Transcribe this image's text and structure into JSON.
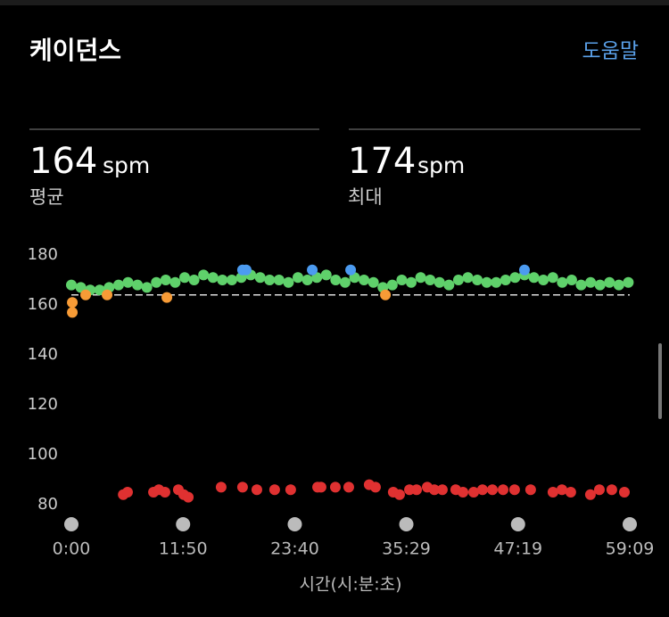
{
  "help_link": "도움말",
  "stats": [
    {
      "value": 164,
      "unit": "spm",
      "label": "평균"
    },
    {
      "value": 174,
      "unit": "spm",
      "label": "최대"
    }
  ],
  "chart_data": {
    "type": "scatter",
    "title": "케이던스",
    "x_label": "시간(시:분:초)",
    "xlim": [
      0,
      3549
    ],
    "xticks": [
      {
        "value": 0,
        "label": "0:00"
      },
      {
        "value": 710,
        "label": "11:50"
      },
      {
        "value": 1420,
        "label": "23:40"
      },
      {
        "value": 2129,
        "label": "35:29"
      },
      {
        "value": 2839,
        "label": "47:19"
      },
      {
        "value": 3549,
        "label": "59:09"
      }
    ],
    "ylim": [
      75,
      185
    ],
    "yticks": [
      80,
      100,
      120,
      140,
      160,
      180
    ],
    "series": [
      {
        "color": "#5fd16b",
        "x": [
          0,
          60,
          120,
          180,
          240,
          300,
          360,
          420,
          480,
          540,
          600,
          660,
          720,
          780,
          840,
          900,
          960,
          1020,
          1080,
          1140,
          1200,
          1260,
          1320,
          1380,
          1440,
          1500,
          1560,
          1620,
          1680,
          1740,
          1800,
          1860,
          1920,
          1980,
          2040,
          2100,
          2160,
          2220,
          2280,
          2340,
          2400,
          2460,
          2520,
          2580,
          2640,
          2700,
          2760,
          2820,
          2880,
          2940,
          3000,
          3060,
          3120,
          3180,
          3240,
          3300,
          3360,
          3420,
          3480,
          3540
        ],
        "values": [
          168,
          167,
          166,
          166,
          167,
          168,
          169,
          168,
          167,
          169,
          170,
          169,
          171,
          170,
          172,
          171,
          170,
          170,
          171,
          172,
          171,
          170,
          170,
          169,
          171,
          170,
          171,
          172,
          170,
          169,
          171,
          170,
          169,
          167,
          168,
          170,
          169,
          171,
          170,
          169,
          168,
          170,
          171,
          170,
          169,
          169,
          170,
          171,
          172,
          171,
          170,
          171,
          169,
          170,
          168,
          169,
          168,
          169,
          168,
          169
        ]
      },
      {
        "color": "#4c9bf0",
        "x": [
          1088,
          1111,
          1531,
          1775,
          2880
        ],
        "values": [
          174,
          174,
          174,
          174,
          174
        ]
      },
      {
        "color": "#f79b36",
        "x": [
          6,
          6,
          91,
          227,
          607,
          1996
        ],
        "values": [
          157,
          161,
          164,
          164,
          163,
          164
        ]
      },
      {
        "color": "#e03131",
        "x": [
          330,
          357,
          522,
          556,
          595,
          680,
          714,
          743,
          952,
          1088,
          1179,
          1292,
          1394,
          1565,
          1587,
          1678,
          1763,
          1893,
          1933,
          2046,
          2086,
          2149,
          2194,
          2262,
          2307,
          2358,
          2443,
          2489,
          2557,
          2613,
          2676,
          2744,
          2817,
          2919,
          3061,
          3118,
          3174,
          3299,
          3356,
          3435,
          3515
        ],
        "values": [
          84,
          85,
          85,
          86,
          85,
          86,
          84,
          83,
          87,
          87,
          86,
          86,
          86,
          87,
          87,
          87,
          87,
          88,
          87,
          85,
          84,
          86,
          86,
          87,
          86,
          86,
          86,
          85,
          85,
          86,
          86,
          86,
          86,
          86,
          85,
          86,
          85,
          84,
          86,
          86,
          85
        ]
      }
    ]
  }
}
